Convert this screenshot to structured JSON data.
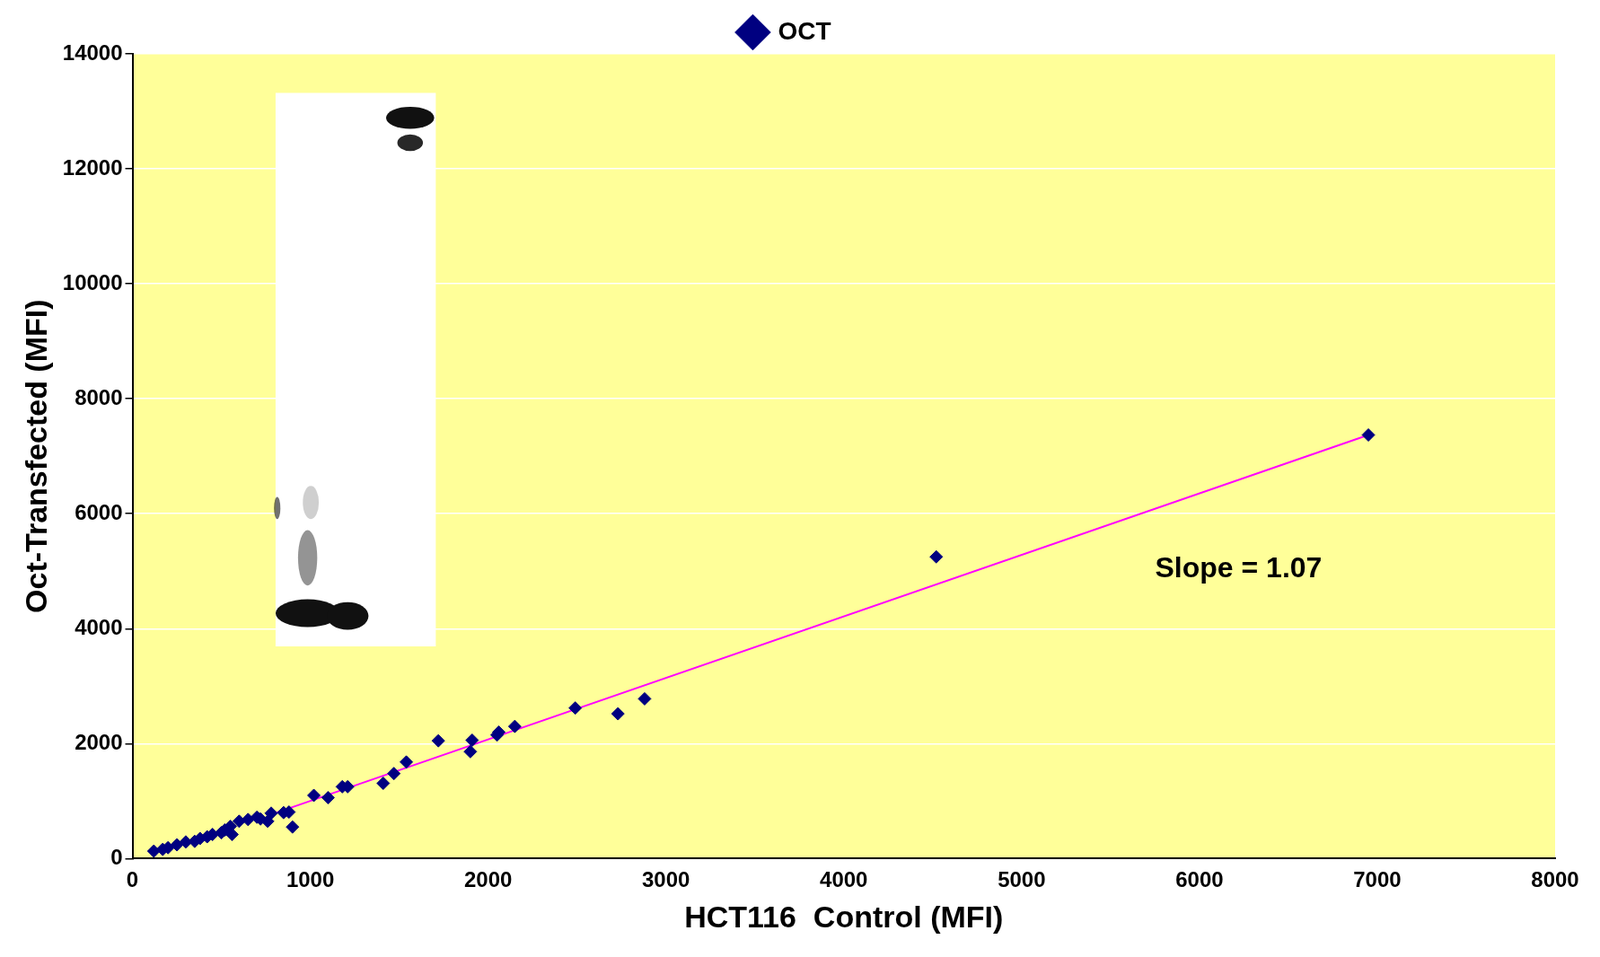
{
  "chart_data": {
    "type": "scatter",
    "x_label": "HCT116  Control (MFI)",
    "y_label": "Oct-Transfected (MFI)",
    "xlim": [
      0,
      8000
    ],
    "xticks": [
      0,
      1000,
      2000,
      3000,
      4000,
      5000,
      6000,
      7000,
      8000
    ],
    "ylim": [
      0,
      14000
    ],
    "yticks": [
      0,
      2000,
      4000,
      6000,
      8000,
      10000,
      12000,
      14000
    ],
    "grid": true,
    "legend": "top",
    "series": [
      {
        "name": "OCT",
        "color": "#000080",
        "marker": "diamond",
        "x": [
          120,
          170,
          200,
          250,
          300,
          350,
          380,
          420,
          450,
          500,
          520,
          550,
          560,
          600,
          650,
          700,
          720,
          760,
          780,
          850,
          880,
          900,
          1020,
          1100,
          1180,
          1210,
          1410,
          1470,
          1540,
          1720,
          1900,
          1910,
          2050,
          2060,
          2150,
          2490,
          2730,
          2880,
          4520,
          6950
        ],
        "values": [
          130,
          160,
          190,
          240,
          290,
          300,
          350,
          380,
          420,
          450,
          500,
          560,
          420,
          650,
          680,
          720,
          690,
          650,
          790,
          800,
          810,
          550,
          1100,
          1060,
          1250,
          1250,
          1310,
          1480,
          1680,
          2050,
          1860,
          2060,
          2150,
          2200,
          2300,
          2620,
          2520,
          2780,
          5250,
          7370
        ]
      }
    ],
    "trend_line": {
      "color": "#ff00ff",
      "x": [
        800,
        6950
      ],
      "values": [
        789,
        7370
      ]
    },
    "annotations": [
      {
        "text": "Slope = 1.07",
        "x": 6220,
        "y": 5030
      }
    ]
  }
}
